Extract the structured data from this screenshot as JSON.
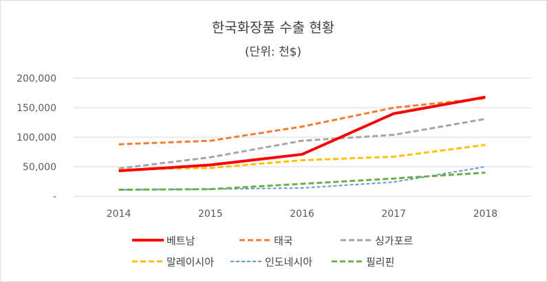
{
  "chart_data": {
    "type": "line",
    "title": "한국화장품 수출 현황",
    "subtitle": "(단위: 천$)",
    "categories": [
      "2014",
      "2015",
      "2016",
      "2017",
      "2018"
    ],
    "ylim": [
      0,
      200000
    ],
    "y_ticks": [
      {
        "value": 0,
        "label": "-"
      },
      {
        "value": 50000,
        "label": "50,000"
      },
      {
        "value": 100000,
        "label": "100,000"
      },
      {
        "value": 150000,
        "label": "150,000"
      },
      {
        "value": 200000,
        "label": "200,000"
      }
    ],
    "grid": true,
    "legend_position": "bottom",
    "series": [
      {
        "name": "베트남",
        "color": "#ff0000",
        "style": "solid",
        "values": [
          43000,
          53000,
          71000,
          140000,
          168000
        ]
      },
      {
        "name": "태국",
        "color": "#ed7d31",
        "style": "dashed",
        "values": [
          88000,
          94000,
          118000,
          150000,
          166000
        ]
      },
      {
        "name": "싱가포르",
        "color": "#a5a5a5",
        "style": "dashed",
        "values": [
          47000,
          66000,
          94000,
          104000,
          131000
        ]
      },
      {
        "name": "말레이시아",
        "color": "#ffc000",
        "style": "dashed",
        "values": [
          45000,
          48000,
          61000,
          67000,
          87000
        ]
      },
      {
        "name": "인도네시아",
        "color": "#5b9bd5",
        "style": "fine-dashed",
        "values": [
          11000,
          12000,
          14000,
          24000,
          50000
        ]
      },
      {
        "name": "필리핀",
        "color": "#70ad47",
        "style": "dashed",
        "values": [
          11000,
          12000,
          21000,
          30000,
          40000
        ]
      }
    ]
  }
}
